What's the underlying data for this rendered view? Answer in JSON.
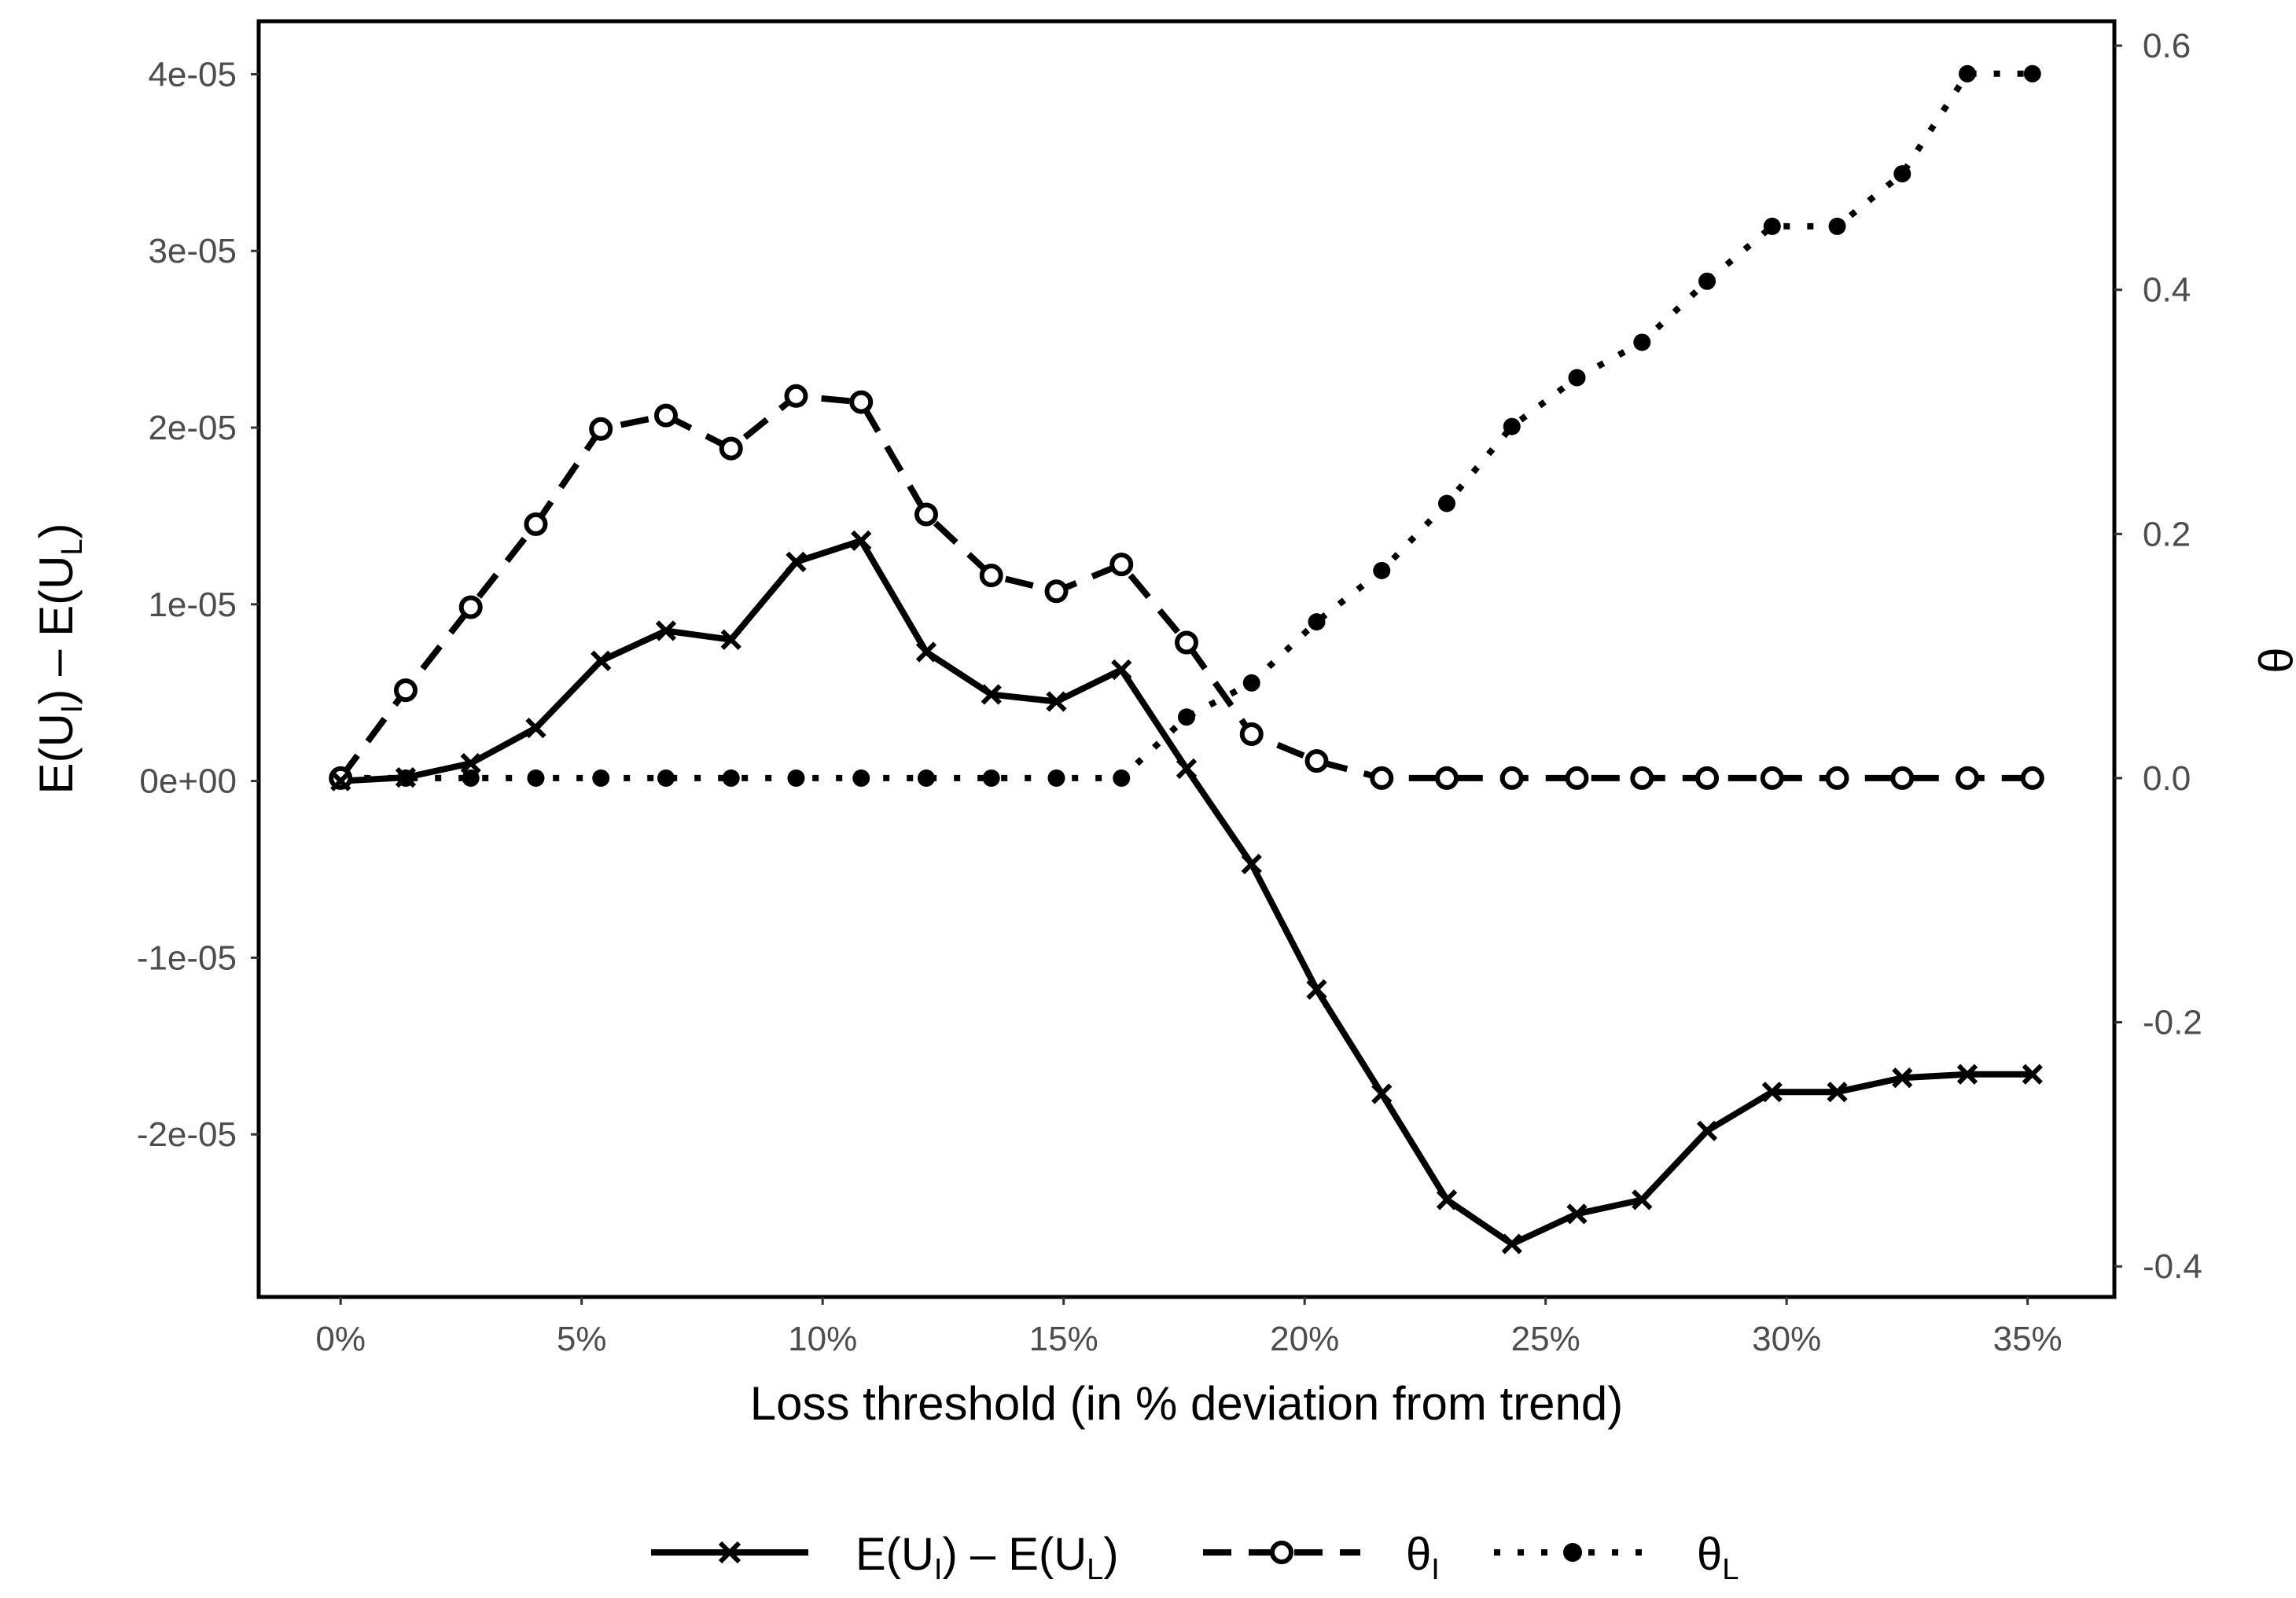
{
  "chart_data": {
    "type": "line",
    "xlabel": "Loss threshold (in % deviation from trend)",
    "ylabel_left": {
      "base": "E(U",
      "sub1": "I",
      "mid": ") – E(U",
      "sub2": "L",
      "end": ")"
    },
    "ylabel_right": "θ",
    "x_ticks": [
      {
        "value": 0,
        "label": "0%"
      },
      {
        "value": 5,
        "label": "5%"
      },
      {
        "value": 10,
        "label": "10%"
      },
      {
        "value": 15,
        "label": "15%"
      },
      {
        "value": 20,
        "label": "20%"
      },
      {
        "value": 25,
        "label": "25%"
      },
      {
        "value": 30,
        "label": "30%"
      },
      {
        "value": 35,
        "label": "35%"
      }
    ],
    "y_left_ticks": [
      {
        "value": 4e-05,
        "label": "4e-05"
      },
      {
        "value": 3e-05,
        "label": "3e-05"
      },
      {
        "value": 2e-05,
        "label": "2e-05"
      },
      {
        "value": 1e-05,
        "label": "1e-05"
      },
      {
        "value": 0,
        "label": "0e+00"
      },
      {
        "value": -1e-05,
        "label": "-1e-05"
      },
      {
        "value": -2e-05,
        "label": "-2e-05"
      }
    ],
    "y_right_ticks": [
      {
        "value": 0.6,
        "label": "0.6"
      },
      {
        "value": 0.4,
        "label": "0.4"
      },
      {
        "value": 0.2,
        "label": "0.2"
      },
      {
        "value": 0.0,
        "label": "0.0"
      },
      {
        "value": -0.2,
        "label": "-0.2"
      },
      {
        "value": -0.4,
        "label": "-0.4"
      }
    ],
    "xlim": [
      -1.7,
      36.8
    ],
    "ylim_left": [
      -2.92e-05,
      4.3e-05
    ],
    "ylim_right": [
      -0.425,
      0.62
    ],
    "x": [
      0,
      1.35,
      2.7,
      4.05,
      5.4,
      6.75,
      8.1,
      9.45,
      10.8,
      12.15,
      13.5,
      14.85,
      16.2,
      17.55,
      18.9,
      20.25,
      21.6,
      22.95,
      24.3,
      25.65,
      27.0,
      28.35,
      29.7,
      31.05,
      32.4,
      33.75,
      35.1
    ],
    "series": [
      {
        "name": "E(U_I) – E(U_L)",
        "axis": "left",
        "style": "solid",
        "marker": "x",
        "values": [
          0,
          2e-07,
          1e-06,
          3e-06,
          6.8e-06,
          8.5e-06,
          8e-06,
          1.24e-05,
          1.36e-05,
          7.3e-06,
          4.9e-06,
          4.5e-06,
          6.3e-06,
          7e-07,
          -4.7e-06,
          -1.18e-05,
          -1.77e-05,
          -2.37e-05,
          -2.62e-05,
          -2.45e-05,
          -2.37e-05,
          -1.98e-05,
          -1.76e-05,
          -1.76e-05,
          -1.68e-05,
          -1.66e-05,
          -1.66e-05
        ]
      },
      {
        "name": "θ_I",
        "axis": "right",
        "style": "dashed",
        "marker": "open-circle",
        "values": [
          0.0,
          0.072,
          0.14,
          0.208,
          0.286,
          0.297,
          0.27,
          0.313,
          0.308,
          0.216,
          0.166,
          0.153,
          0.175,
          0.111,
          0.036,
          0.014,
          0.0,
          0.0,
          0.0,
          0.0,
          0.0,
          0.0,
          0.0,
          0.0,
          0.0,
          0.0,
          0.0
        ]
      },
      {
        "name": "θ_L",
        "axis": "right",
        "style": "dotted",
        "marker": "filled-circle",
        "values": [
          0.0,
          0.0,
          0.0,
          0.0,
          0.0,
          0.0,
          0.0,
          0.0,
          0.0,
          0.0,
          0.0,
          0.0,
          0.0,
          0.05,
          0.078,
          0.128,
          0.17,
          0.225,
          0.288,
          0.328,
          0.357,
          0.407,
          0.452,
          0.452,
          0.495,
          0.577,
          0.577
        ]
      }
    ],
    "legend": {
      "position": "bottom",
      "items": [
        {
          "base": "E(U",
          "sub1": "I",
          "mid": ") – E(U",
          "sub2": "L",
          "end": ")"
        },
        {
          "base": "θ",
          "sub1": "I"
        },
        {
          "base": "θ",
          "sub1": "L"
        }
      ]
    }
  }
}
